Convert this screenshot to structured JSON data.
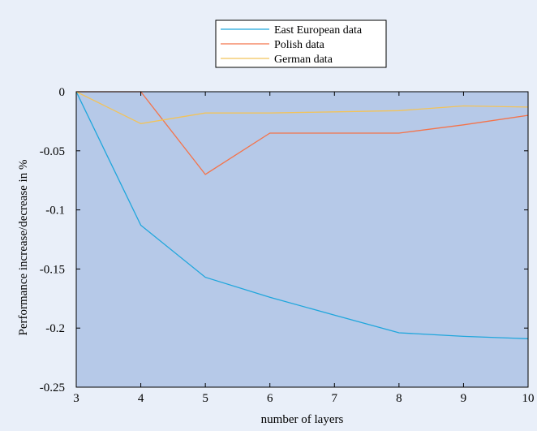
{
  "chart_data": {
    "type": "line",
    "title": "",
    "xlabel": "number of layers",
    "ylabel": "Performance increase/decrease in %",
    "xlim": [
      3,
      10
    ],
    "ylim": [
      -0.25,
      0
    ],
    "x_ticks": [
      "3",
      "4",
      "5",
      "6",
      "7",
      "8",
      "9",
      "10"
    ],
    "y_ticks": [
      "0",
      "-0.05",
      "-0.1",
      "-0.15",
      "-0.2",
      "-0.25"
    ],
    "grid": false,
    "legend_position": "top-center",
    "plot_background": "#b6c9e8",
    "page_background": "#e9eff9",
    "x": [
      3,
      4,
      5,
      6,
      7,
      8,
      9,
      10
    ],
    "series": [
      {
        "name": "East European data",
        "color": "#1fa6dc",
        "values": [
          0,
          -0.113,
          -0.157,
          -0.174,
          -0.189,
          -0.204,
          -0.207,
          -0.209
        ]
      },
      {
        "name": "Polish data",
        "color": "#f4734a",
        "values": [
          0,
          0,
          -0.07,
          -0.035,
          -0.035,
          -0.035,
          -0.028,
          -0.02
        ]
      },
      {
        "name": "German data",
        "color": "#f2c35a",
        "values": [
          0,
          -0.027,
          -0.018,
          -0.018,
          -0.017,
          -0.016,
          -0.012,
          -0.013
        ]
      }
    ]
  }
}
